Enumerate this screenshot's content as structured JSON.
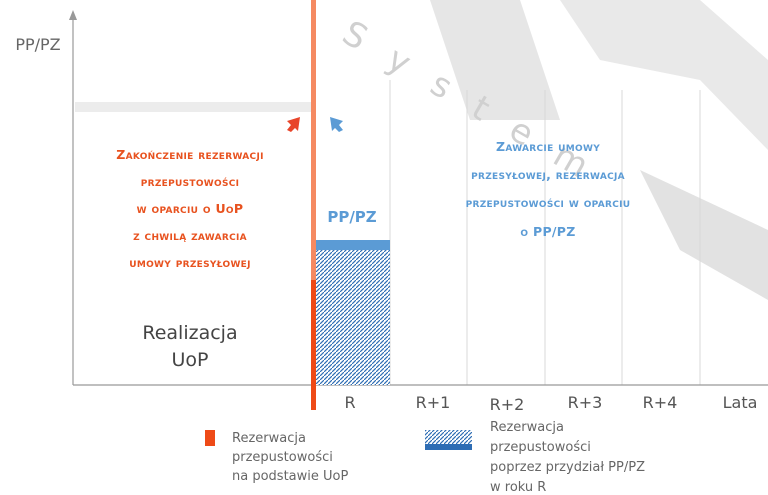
{
  "diagram": {
    "y_axis_label": "PP/PZ",
    "left_text": [
      "Zakończenie rezerwacji",
      "przepustowości",
      "w oparciu o UoP",
      "z chwilą zawarcia",
      "umowy przesyłowej"
    ],
    "right_text": [
      "Zawarcie umowy",
      "przesyłowej, rezerwacja",
      "przepustowości w oparciu",
      "o PP/PZ"
    ],
    "bar_label": "PP/PZ",
    "phase_label": [
      "Realizacja",
      "UoP"
    ],
    "x_labels": [
      "R",
      "R+1",
      "R+2",
      "R+3",
      "R+4",
      "Lata"
    ],
    "legend": [
      {
        "lines": [
          "Rezerwacja",
          "przepustowości",
          "na podstawie UoP"
        ]
      },
      {
        "lines": [
          "Rezerwacja",
          "przepustowości",
          "poprzez przydział PP/PZ",
          "w roku R"
        ]
      }
    ],
    "watermark": "System"
  }
}
